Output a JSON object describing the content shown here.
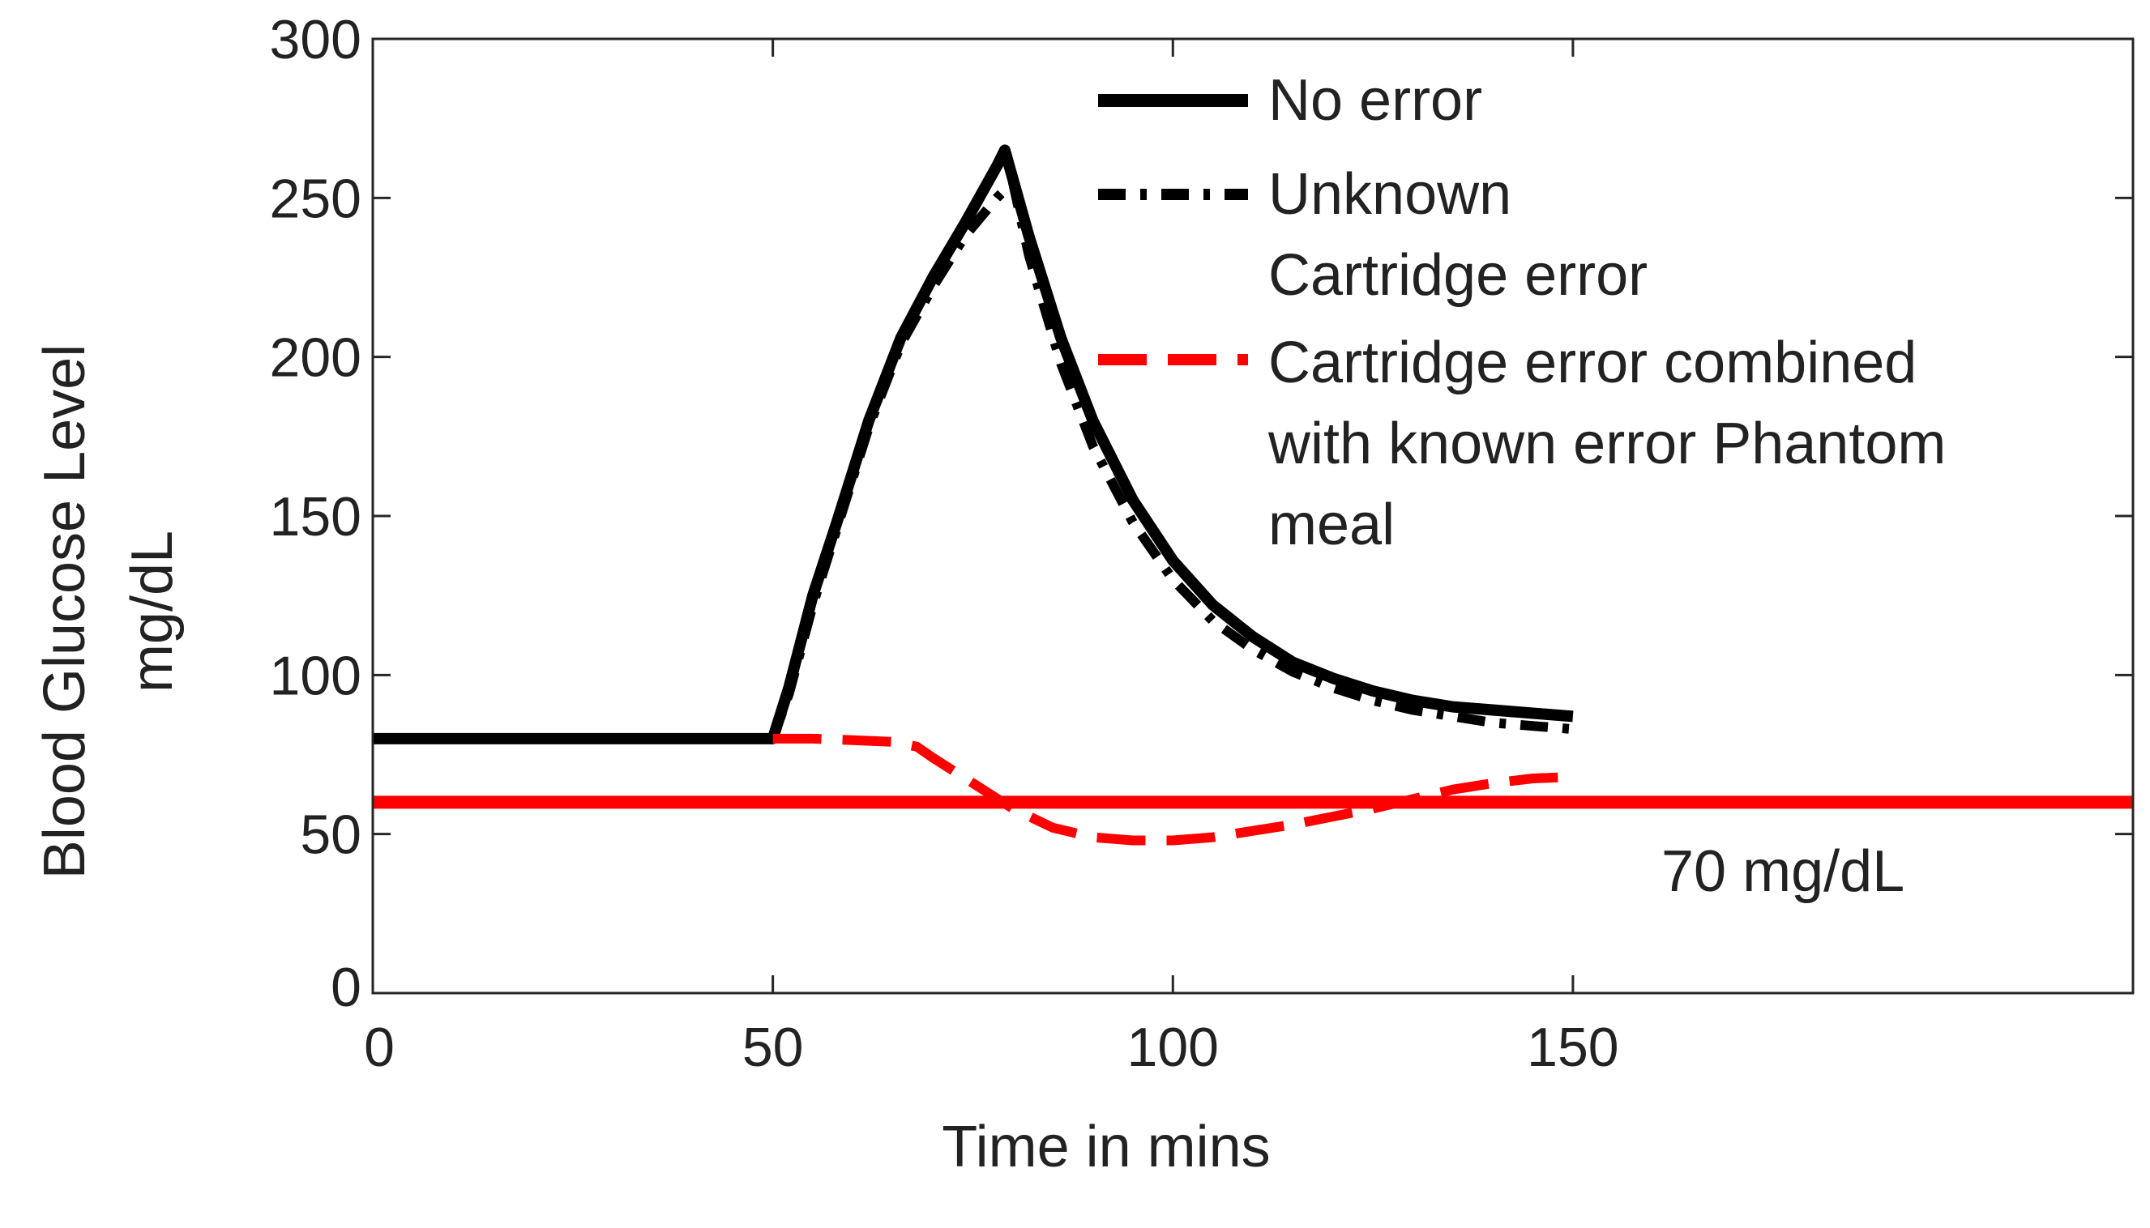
{
  "chart_data": {
    "type": "line",
    "xlabel": "Time in mins",
    "ylabel_lines": [
      "Blood Glucose Level",
      "mg/dL"
    ],
    "xlim": [
      0,
      220
    ],
    "ylim": [
      0,
      300
    ],
    "x_ticks": [
      0,
      50,
      100,
      150
    ],
    "x_tick_labels": [
      "0",
      "50",
      "100",
      "150"
    ],
    "y_ticks": [
      0,
      50,
      100,
      150,
      200,
      250,
      300
    ],
    "y_tick_labels": [
      "0",
      "50",
      "100",
      "150",
      "200",
      "250",
      "300"
    ],
    "grid": false,
    "legend_position": "top-right",
    "series": [
      {
        "name": "No error",
        "style": "solid",
        "color": "#000000",
        "x": [
          0,
          50,
          52,
          55,
          58,
          62,
          66,
          70,
          74,
          78,
          79,
          82,
          86,
          90,
          95,
          100,
          105,
          110,
          115,
          120,
          125,
          130,
          135,
          140,
          145,
          150
        ],
        "y": [
          80,
          80,
          96,
          125,
          148,
          180,
          206,
          225,
          242,
          260,
          265,
          238,
          206,
          180,
          155,
          136,
          122,
          112,
          104,
          99,
          95,
          92,
          90,
          89,
          88,
          87
        ]
      },
      {
        "name": "Unknown Cartridge error",
        "name_lines": [
          "Unknown",
          "Cartridge error"
        ],
        "style": "dashdot",
        "color": "#000000",
        "x": [
          0,
          50,
          52,
          55,
          58,
          62,
          66,
          70,
          74,
          78,
          80,
          82,
          86,
          90,
          95,
          100,
          105,
          110,
          115,
          120,
          125,
          130,
          135,
          140,
          145,
          150
        ],
        "y": [
          80,
          80,
          94,
          122,
          146,
          178,
          204,
          222,
          238,
          250,
          255,
          232,
          198,
          172,
          148,
          130,
          117,
          108,
          101,
          96,
          92,
          89,
          87,
          85,
          84,
          83
        ]
      },
      {
        "name": "Cartridge error combined with known error Phantom meal",
        "name_lines": [
          "Cartridge error combined",
          "with known error Phantom",
          "meal"
        ],
        "style": "dashed",
        "color": "#ff0000",
        "x": [
          50,
          55,
          60,
          65,
          68,
          70,
          75,
          80,
          85,
          90,
          95,
          100,
          105,
          110,
          115,
          120,
          125,
          130,
          135,
          140,
          145,
          150
        ],
        "y": [
          80,
          80,
          79.5,
          79,
          77.5,
          74,
          66,
          58,
          52,
          49,
          48,
          48,
          49,
          51,
          53,
          55.5,
          58,
          61,
          64,
          66,
          67.5,
          68
        ]
      }
    ],
    "reference_line": {
      "y": 60,
      "color": "#ff0000",
      "label": "70 mg/dL"
    }
  }
}
